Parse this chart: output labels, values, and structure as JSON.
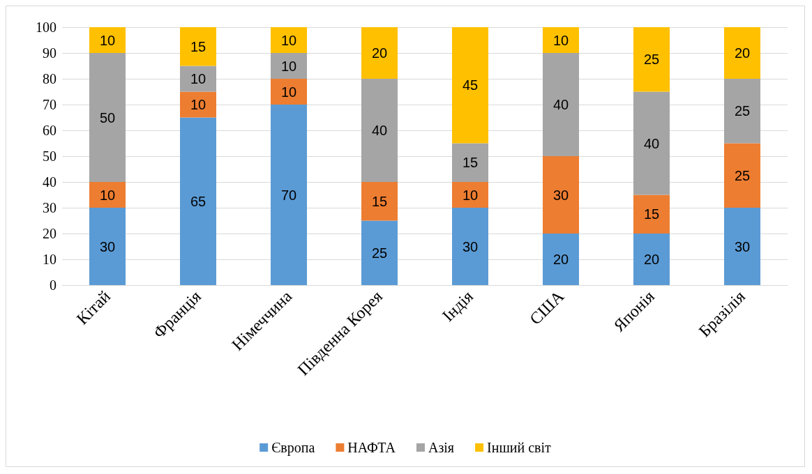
{
  "chart_data": {
    "type": "bar",
    "stacked": true,
    "categories": [
      "Кітай",
      "Франція",
      "Німеччина",
      "Південна Корея",
      "Індія",
      "США",
      "Японія",
      "Бразілія"
    ],
    "series": [
      {
        "name": "Європа",
        "color": "#5b9bd5",
        "values": [
          30,
          65,
          70,
          25,
          30,
          20,
          20,
          30
        ]
      },
      {
        "name": "НАФТА",
        "color": "#ed7d31",
        "values": [
          10,
          10,
          10,
          15,
          10,
          30,
          15,
          25
        ]
      },
      {
        "name": "Азія",
        "color": "#a5a5a5",
        "values": [
          50,
          10,
          10,
          40,
          15,
          40,
          40,
          25
        ]
      },
      {
        "name": "Інший світ",
        "color": "#ffc000",
        "values": [
          10,
          15,
          10,
          20,
          45,
          10,
          25,
          20
        ]
      }
    ],
    "ylim": [
      0,
      100
    ],
    "yticks": [
      0,
      10,
      20,
      30,
      40,
      50,
      60,
      70,
      80,
      90,
      100
    ],
    "grid": "y",
    "legend": "bottom",
    "data_labels": true
  }
}
